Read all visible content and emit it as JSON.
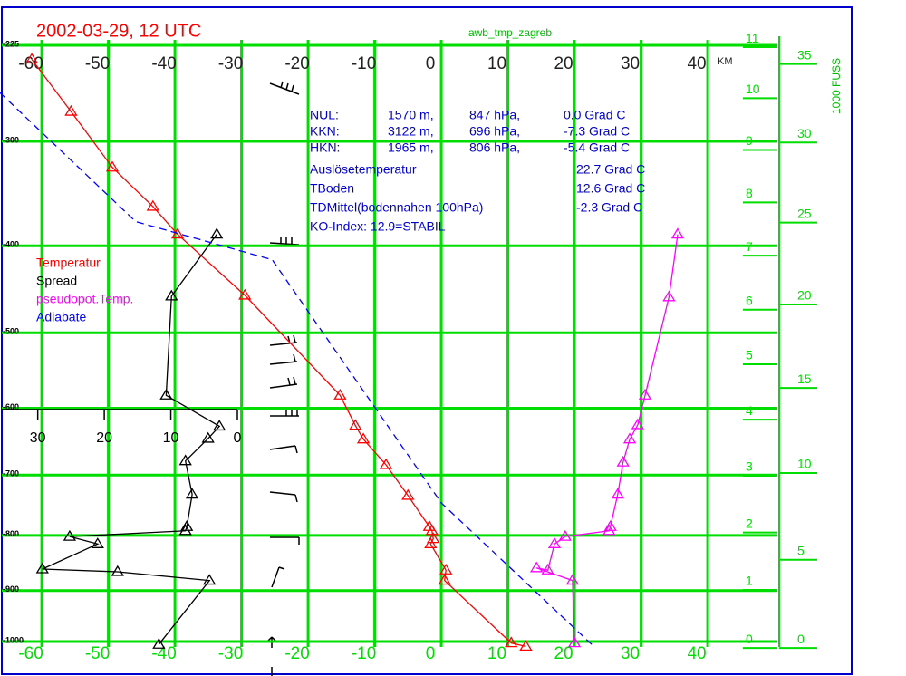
{
  "chart_data": {
    "type": "line",
    "title": "2002-03-29, 12 UTC",
    "subtitle": "awb_tmp_zagreb",
    "xlim": [
      -66,
      45.3
    ],
    "xticks": [
      -60,
      -50,
      -40,
      -30,
      -20,
      -10,
      0,
      10,
      20,
      30,
      40
    ],
    "ylim": [
      -1000,
      -225
    ],
    "yticks": [
      -225,
      -300,
      -400,
      -500,
      -600,
      -700,
      -800,
      -900,
      -1000
    ],
    "x2lim": [
      35.4,
      0
    ],
    "x2ticks": [
      30,
      20,
      10,
      0
    ],
    "y2label": "KM",
    "y2ticks": [
      0,
      1,
      2,
      3,
      4,
      5,
      6,
      7,
      8,
      9,
      10,
      11
    ],
    "y3label": "1000 FUSS",
    "y3ticks": [
      0,
      5,
      10,
      15,
      20,
      25,
      30,
      35
    ],
    "grid": true,
    "legend": "left",
    "series": [
      {
        "name": "Temperatur",
        "color": "#ff0000",
        "marker": "triangle",
        "x": [
          -61.5,
          -55.6,
          -49.4,
          -43.3,
          -39.6,
          -29.5,
          -15.2,
          -12.9,
          -11.7,
          -8.3,
          -5.0,
          -1.8,
          -1.4,
          -1.2,
          -1.6,
          0.7,
          0.5,
          10.5,
          12.7
        ],
        "values": [
          -235,
          -275,
          -323,
          -360,
          -388,
          -455,
          -582,
          -625,
          -645,
          -684,
          -733,
          -785,
          -792,
          -806,
          -815,
          -862,
          -881,
          -1003,
          -1010
        ]
      },
      {
        "name": "Spread",
        "color": "#000000",
        "marker": "triangle",
        "axis": "x2",
        "x": [
          3.1,
          9.9,
          10.7,
          2.7,
          4.4,
          7.8,
          6.8,
          7.6,
          7.8,
          25.2,
          21.0,
          29.3,
          18.0,
          4.2,
          11.8
        ],
        "values": [
          -388,
          -456,
          -582,
          -626,
          -644,
          -678,
          -731,
          -785,
          -792,
          -802,
          -815,
          -860,
          -865,
          -881,
          -1006
        ]
      },
      {
        "name": "pseudopot.Temp.",
        "color": "#ff00ff",
        "marker": "triangle",
        "x": [
          35.5,
          34.2,
          30.6,
          29.5,
          28.3,
          27.3,
          26.5,
          25.4,
          25.2,
          18.6,
          17.0,
          16.0,
          14.3,
          19.7,
          20.0
        ],
        "values": [
          -388,
          -457,
          -582,
          -624,
          -645,
          -680,
          -731,
          -785,
          -792,
          -802,
          -815,
          -862,
          -858,
          -881,
          -1003
        ]
      },
      {
        "name": "Adiabate",
        "color": "#0000ff",
        "dashed": true,
        "x": [
          -66.3,
          -45.9,
          -25.4,
          0,
          22.9
        ],
        "values": [
          -260,
          -375,
          -415,
          -745,
          -1010
        ]
      }
    ],
    "annotations": [
      [
        "NUL:",
        "1570 m,",
        "847 hPa,",
        "0.0 Grad C"
      ],
      [
        "KKN:",
        "3122 m,",
        "696 hPa,",
        "-7.3 Grad C"
      ],
      [
        "HKN:",
        "1965 m,",
        "806 hPa,",
        "-5.4 Grad C"
      ],
      [
        "Auslösetemperatur",
        "22.7 Grad C"
      ],
      [
        "TBoden",
        "12.6 Grad C"
      ],
      [
        "TDMittel(bodennahen 100hPa)",
        "-2.3 Grad C"
      ],
      [
        "KO-Index: 12.9=STABIL"
      ]
    ]
  }
}
